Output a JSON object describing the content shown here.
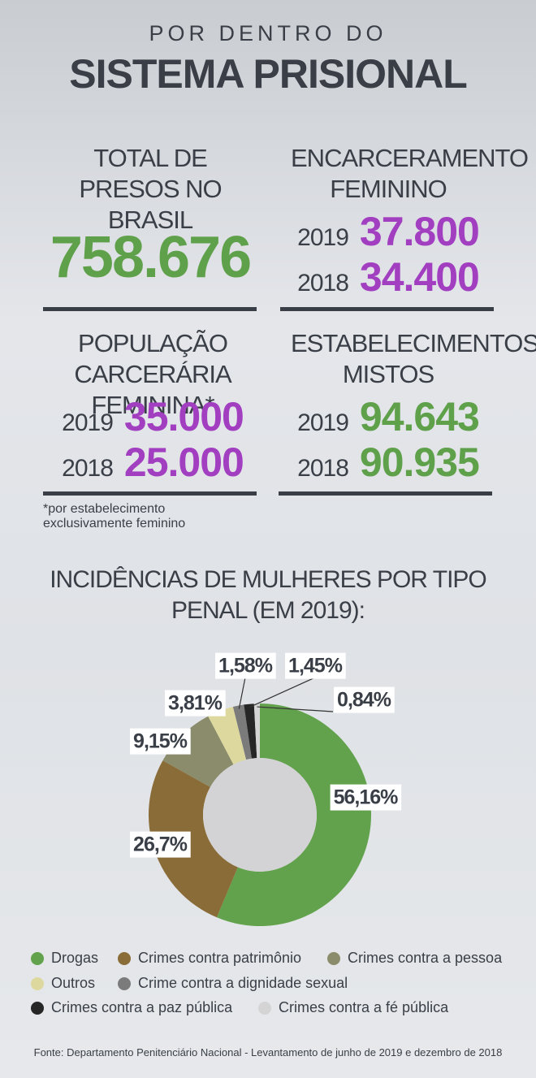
{
  "header": {
    "kicker": "POR DENTRO DO",
    "title": "SISTEMA PRISIONAL"
  },
  "stats": [
    {
      "title": "TOTAL DE PRESOS NO BRASIL",
      "value": "758.676"
    },
    {
      "title": "ENCARCERAMENTO FEMININO",
      "rows": [
        {
          "year": "2019",
          "value": "37.800"
        },
        {
          "year": "2018",
          "value": "34.400"
        }
      ]
    },
    {
      "title": "POPULAÇÃO CARCERÁRIA FEMININA*",
      "rows": [
        {
          "year": "2019",
          "value": "35.000"
        },
        {
          "year": "2018",
          "value": "25.000"
        }
      ]
    },
    {
      "title": "ESTABELECIMENTOS MISTOS",
      "rows": [
        {
          "year": "2019",
          "value": "94.643"
        },
        {
          "year": "2018",
          "value": "90.935"
        }
      ]
    }
  ],
  "note": "*por estabelecimento exclusivamente feminino",
  "chart_data": {
    "type": "donut",
    "title": "INCIDÊNCIAS DE MULHERES POR TIPO PENAL (EM 2019):",
    "categories": [
      "Drogas",
      "Crimes contra patrimônio",
      "Crimes contra a pessoa",
      "Outros",
      "Crime contra a dignidade sexual",
      "Crimes contra a paz pública",
      "Crimes contra a fé pública"
    ],
    "values": [
      56.16,
      26.7,
      9.15,
      3.81,
      1.58,
      1.45,
      0.84
    ],
    "value_labels": [
      "56,16%",
      "26,7%",
      "9,15%",
      "3,81%",
      "1,58%",
      "1,45%",
      "0,84%"
    ],
    "colors": [
      "#62a24c",
      "#8a6c38",
      "#8b8c6b",
      "#ddd99e",
      "#7b7b7b",
      "#262626",
      "#d4d4d4"
    ]
  },
  "source": "Fonte: Departamento Penitenciário Nacional - Levantamento de junho de 2019 e dezembro de 2018"
}
